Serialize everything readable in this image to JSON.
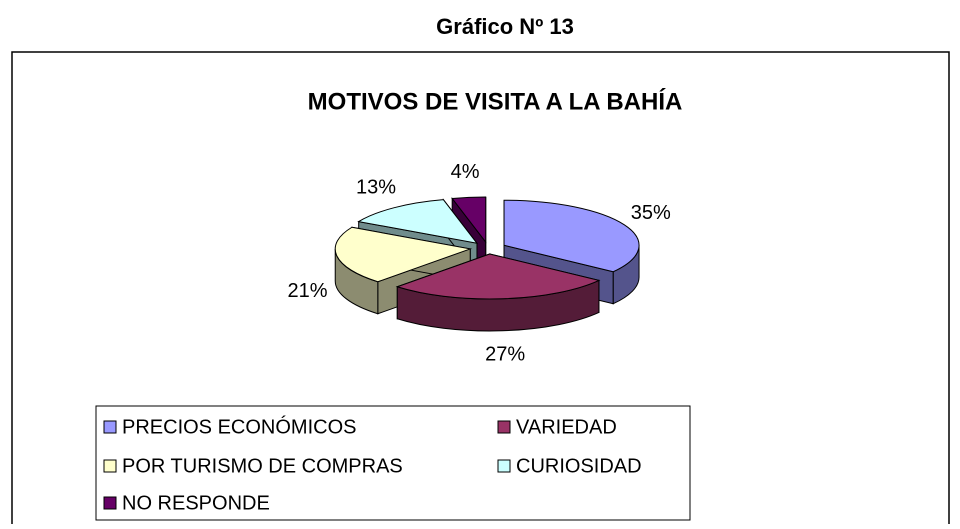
{
  "heading": "Gráfico Nº 13",
  "chart_data": {
    "type": "pie3d",
    "title": "MOTIVOS DE VISITA A LA BAHÍA",
    "categories": [
      "PRECIOS ECONÓMICOS",
      "VARIEDAD",
      "POR TURISMO DE COMPRAS",
      "CURIOSIDAD",
      "NO RESPONDE"
    ],
    "values": [
      35,
      27,
      21,
      13,
      4
    ],
    "value_labels": [
      "35%",
      "27%",
      "21%",
      "13%",
      "4%"
    ],
    "colors": [
      "#9999ff",
      "#993366",
      "#ffffcc",
      "#ccffff",
      "#660066"
    ],
    "legend": "bottom"
  }
}
